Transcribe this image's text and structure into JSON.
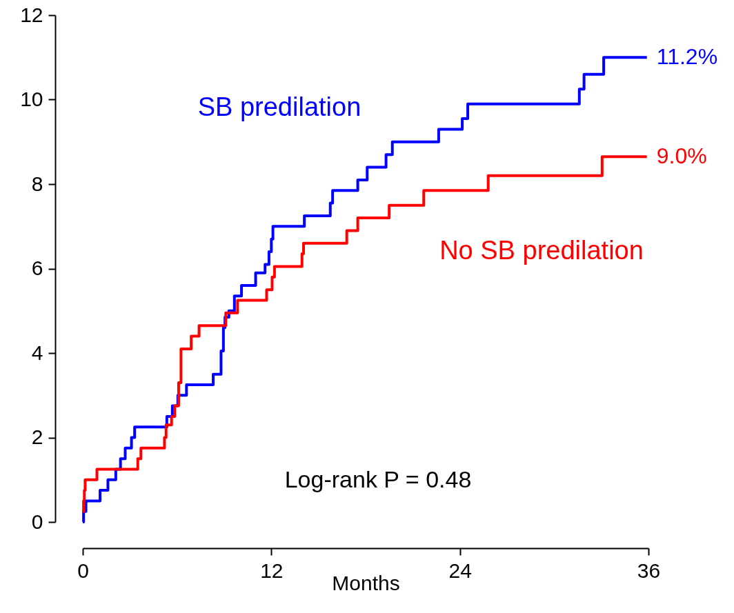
{
  "chart_data": {
    "type": "step",
    "xlabel": "Months",
    "xlim": [
      0,
      36
    ],
    "xticks": [
      0,
      12,
      24,
      36
    ],
    "ylim": [
      0,
      12
    ],
    "yticks": [
      0,
      2,
      4,
      6,
      8,
      10,
      12
    ],
    "grid": false,
    "marker": "none",
    "line_style": "solid",
    "annotations": [
      "Log-rank P = 0.48",
      {
        "text": "11.2%",
        "x": 35.9,
        "y": 11.0
      },
      {
        "text": "9.0%",
        "x": 35.9,
        "y": 8.65
      }
    ],
    "series": [
      {
        "name": "SB predilation",
        "color": "#0000ff",
        "x": [
          0,
          0.05,
          0.2,
          1.1,
          1.6,
          2.1,
          2.4,
          2.7,
          3.1,
          3.3,
          5.35,
          5.7,
          6.05,
          6.6,
          8.3,
          8.8,
          8.95,
          9.05,
          9.3,
          9.65,
          10.1,
          11.0,
          11.6,
          11.85,
          12.0,
          12.1,
          14.1,
          15.75,
          15.9,
          17.5,
          18.1,
          19.3,
          19.7,
          22.65,
          24.15,
          24.5,
          31.6,
          31.9,
          33.15,
          35.9
        ],
        "values": [
          0,
          0.25,
          0.5,
          0.75,
          1.0,
          1.25,
          1.5,
          1.75,
          2.0,
          2.25,
          2.5,
          2.75,
          3.0,
          3.25,
          3.5,
          4.05,
          4.6,
          4.85,
          5.0,
          5.35,
          5.6,
          5.9,
          6.1,
          6.4,
          6.7,
          7.0,
          7.25,
          7.55,
          7.85,
          8.1,
          8.4,
          8.7,
          9.0,
          9.3,
          9.55,
          9.9,
          10.25,
          10.6,
          11.0,
          11.0
        ]
      },
      {
        "name": "No SB predilation",
        "color": "#ff0000",
        "x": [
          0,
          0.05,
          0.1,
          0.15,
          0.9,
          3.5,
          3.7,
          5.2,
          5.3,
          5.65,
          5.85,
          6.1,
          6.25,
          6.9,
          7.4,
          9.1,
          9.85,
          11.7,
          12.05,
          12.2,
          13.95,
          14.05,
          16.8,
          17.5,
          19.5,
          21.7,
          25.8,
          33.05,
          35.9
        ],
        "values": [
          0.25,
          0.5,
          0.75,
          1.0,
          1.25,
          1.5,
          1.75,
          2.0,
          2.3,
          2.5,
          2.75,
          3.3,
          4.1,
          4.4,
          4.65,
          4.95,
          5.25,
          5.5,
          5.8,
          6.05,
          6.35,
          6.6,
          6.9,
          7.2,
          7.5,
          7.85,
          8.2,
          8.65,
          8.65
        ]
      }
    ]
  }
}
